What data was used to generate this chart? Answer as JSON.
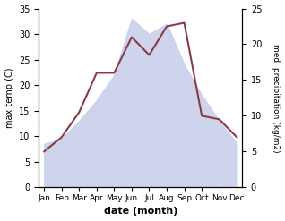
{
  "months": [
    "Jan",
    "Feb",
    "Mar",
    "Apr",
    "May",
    "Jun",
    "Jul",
    "Aug",
    "Sep",
    "Oct",
    "Nov",
    "Dec"
  ],
  "temp": [
    8.5,
    9.5,
    13.0,
    17.0,
    22.0,
    33.0,
    30.0,
    32.0,
    24.0,
    18.0,
    13.0,
    8.5
  ],
  "precip": [
    5.0,
    7.0,
    10.5,
    16.0,
    16.0,
    21.0,
    18.5,
    22.5,
    23.0,
    10.0,
    9.5,
    7.0
  ],
  "temp_fill_color": "#c8d0ea",
  "precip_color": "#8b3a4a",
  "ylim_left": [
    0,
    35
  ],
  "ylim_right": [
    0,
    25
  ],
  "yticks_left": [
    0,
    5,
    10,
    15,
    20,
    25,
    30,
    35
  ],
  "yticks_right": [
    0,
    5,
    10,
    15,
    20,
    25
  ],
  "xlabel": "date (month)",
  "ylabel_left": "max temp (C)",
  "ylabel_right": "med. precipitation (kg/m2)",
  "bg_color": "#ffffff"
}
